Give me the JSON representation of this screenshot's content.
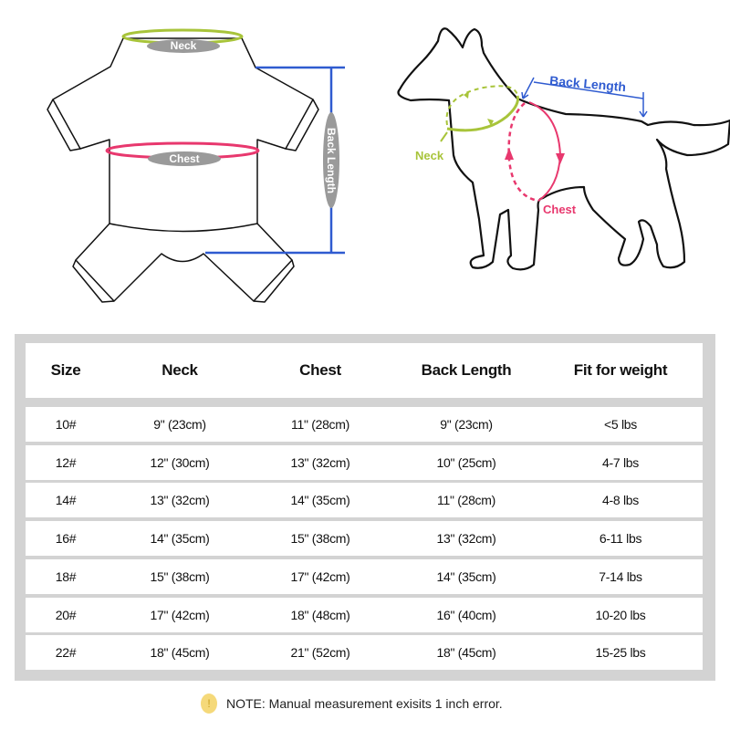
{
  "garment_diagram": {
    "neck_label": "Neck",
    "chest_label": "Chest",
    "back_length_label": "Back Length"
  },
  "dog_diagram": {
    "neck_label": "Neck",
    "chest_label": "Chest",
    "back_length_label": "Back Length"
  },
  "colors": {
    "neck": "#a8c43a",
    "chest": "#e8386e",
    "back_length": "#2f5bd0",
    "label_pill": "#9a9a9a",
    "table_border": "#d3d3d3"
  },
  "size_table": {
    "headers": [
      "Size",
      "Neck",
      "Chest",
      "Back Length",
      "Fit for weight"
    ],
    "rows": [
      [
        "10#",
        "9\" (23cm)",
        "11\" (28cm)",
        "9\" (23cm)",
        "<5 lbs"
      ],
      [
        "12#",
        "12\" (30cm)",
        "13\" (32cm)",
        "10\" (25cm)",
        "4-7 lbs"
      ],
      [
        "14#",
        "13\" (32cm)",
        "14\" (35cm)",
        "11\" (28cm)",
        "4-8  lbs"
      ],
      [
        "16#",
        "14\" (35cm)",
        "15\" (38cm)",
        "13\" (32cm)",
        "6-11  lbs"
      ],
      [
        "18#",
        "15\" (38cm)",
        "17\" (42cm)",
        "14\" (35cm)",
        "7-14  lbs"
      ],
      [
        "20#",
        "17\" (42cm)",
        "18\" (48cm)",
        "16\" (40cm)",
        "10-20 lbs"
      ],
      [
        "22#",
        "18\" (45cm)",
        "21\" (52cm)",
        "18\" (45cm)",
        "15-25 lbs"
      ]
    ]
  },
  "note": {
    "icon": "exclamation-icon",
    "icon_glyph": "!",
    "text": "NOTE: Manual measurement exisits 1 inch error."
  }
}
